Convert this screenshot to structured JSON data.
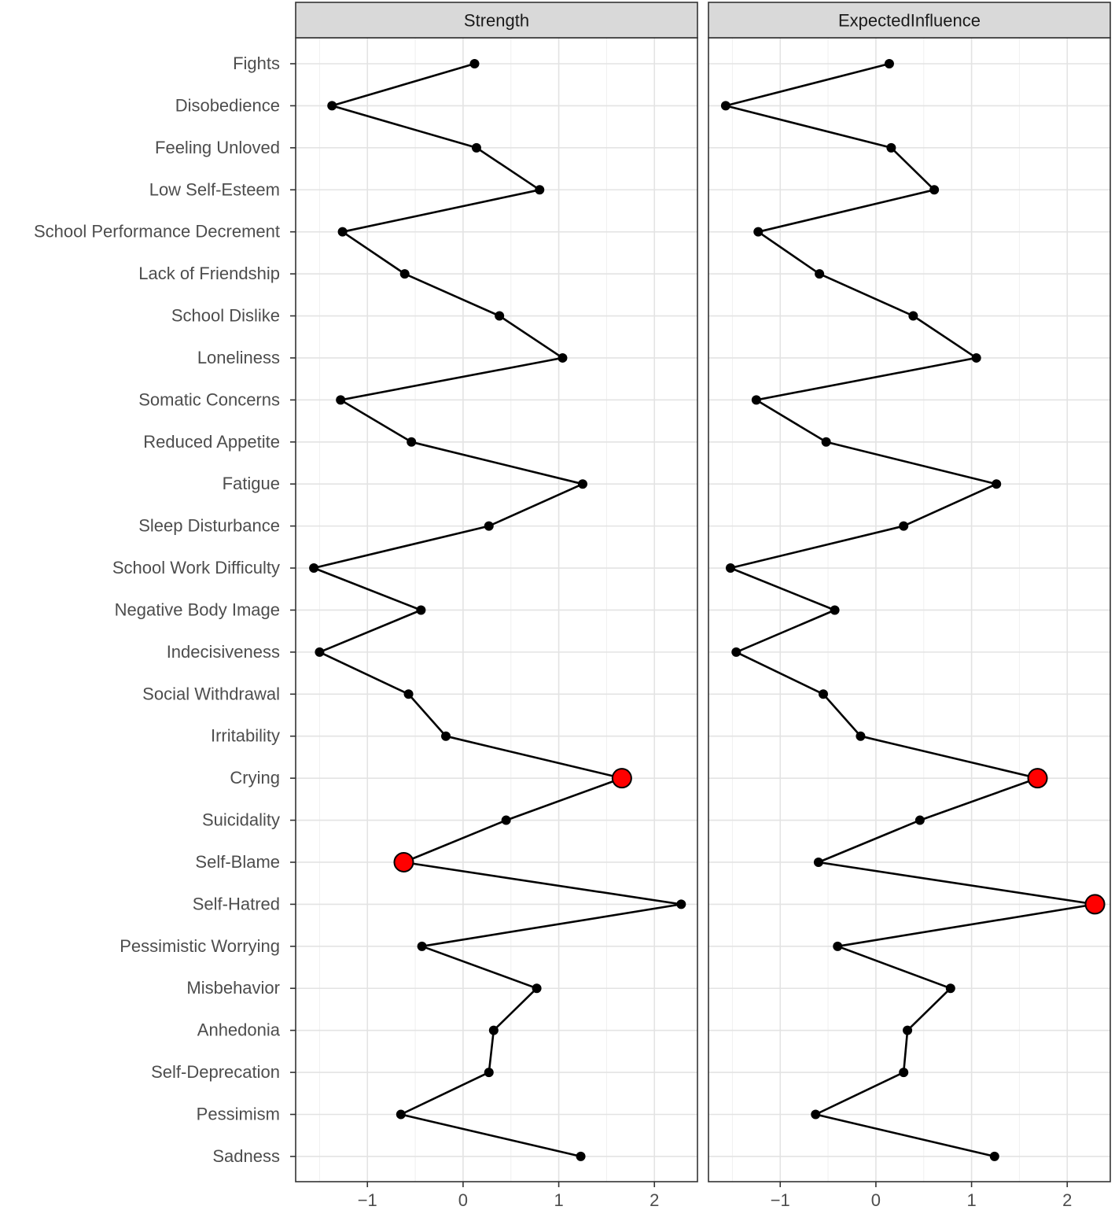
{
  "chart_data": {
    "type": "line",
    "panels": [
      "Strength",
      "ExpectedInfluence"
    ],
    "categories": [
      "Fights",
      "Disobedience",
      "Feeling Unloved",
      "Low Self-Esteem",
      "School Performance Decrement",
      "Lack of Friendship",
      "School Dislike",
      "Loneliness",
      "Somatic Concerns",
      "Reduced Appetite",
      "Fatigue",
      "Sleep Disturbance",
      "School Work Difficulty",
      "Negative Body Image",
      "Indecisiveness",
      "Social Withdrawal",
      "Irritability",
      "Crying",
      "Suicidality",
      "Self-Blame",
      "Self-Hatred",
      "Pessimistic Worrying",
      "Misbehavior",
      "Anhedonia",
      "Self-Deprecation",
      "Pessimism",
      "Sadness"
    ],
    "series": [
      {
        "name": "Strength",
        "values": [
          0.12,
          -1.37,
          0.14,
          0.8,
          -1.26,
          -0.61,
          0.38,
          1.04,
          -1.28,
          -0.54,
          1.25,
          0.27,
          -1.56,
          -0.44,
          -1.5,
          -0.57,
          -0.18,
          1.66,
          0.45,
          -0.62,
          2.28,
          -0.43,
          0.77,
          0.32,
          0.27,
          -0.65,
          1.23
        ],
        "highlight": [
          false,
          false,
          false,
          false,
          false,
          false,
          false,
          false,
          false,
          false,
          false,
          false,
          false,
          false,
          false,
          false,
          false,
          true,
          false,
          true,
          false,
          false,
          false,
          false,
          false,
          false,
          false
        ]
      },
      {
        "name": "ExpectedInfluence",
        "values": [
          0.14,
          -1.57,
          0.16,
          0.61,
          -1.23,
          -0.59,
          0.39,
          1.05,
          -1.25,
          -0.52,
          1.26,
          0.29,
          -1.52,
          -0.43,
          -1.46,
          -0.55,
          -0.16,
          1.69,
          0.46,
          -0.6,
          2.29,
          -0.4,
          0.78,
          0.33,
          0.29,
          -0.63,
          1.24
        ],
        "highlight": [
          false,
          false,
          false,
          false,
          false,
          false,
          false,
          false,
          false,
          false,
          false,
          false,
          false,
          false,
          false,
          false,
          false,
          true,
          false,
          false,
          true,
          false,
          false,
          false,
          false,
          false,
          false
        ]
      }
    ],
    "xticks": [
      -1,
      0,
      1,
      2
    ],
    "xtick_labels": [
      "−1",
      "0",
      "1",
      "2"
    ],
    "xlim": [
      -1.75,
      2.45
    ],
    "xlabel": "",
    "ylabel": "",
    "grid": true,
    "point_color": "#000000",
    "highlight_color": "#ff0000",
    "strip_color": "#d9d9d9"
  }
}
